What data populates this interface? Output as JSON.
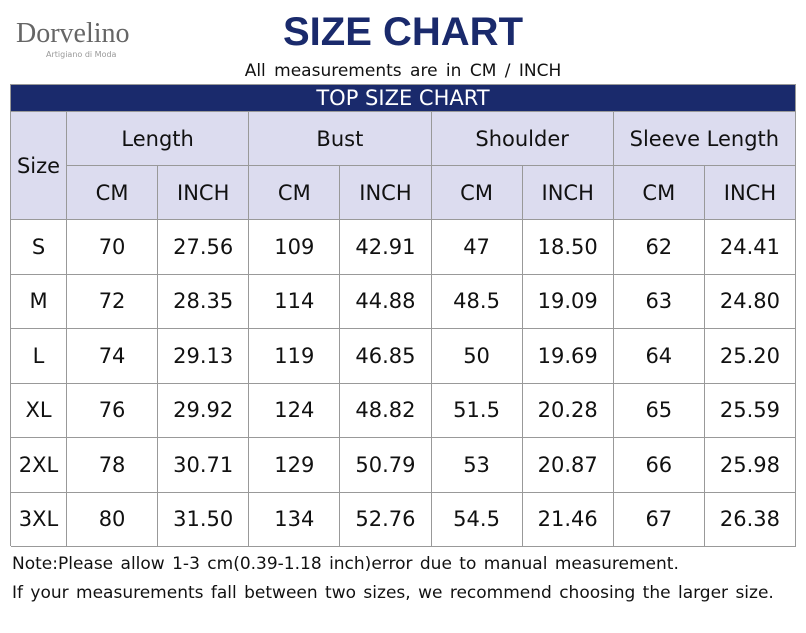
{
  "header": {
    "logo": "Dorvelino",
    "logo_tagline": "Artigiano di Moda",
    "title": "SIZE CHART",
    "subtitle": "All measurements are in CM / INCH"
  },
  "table": {
    "title": "TOP SIZE CHART",
    "size_header": "Size",
    "groups": [
      "Length",
      "Bust",
      "Shoulder",
      "Sleeve Length"
    ],
    "units": [
      "CM",
      "INCH",
      "CM",
      "INCH",
      "CM",
      "INCH",
      "CM",
      "INCH"
    ],
    "rows": [
      [
        "S",
        "70",
        "27.56",
        "109",
        "42.91",
        "47",
        "18.50",
        "62",
        "24.41"
      ],
      [
        "M",
        "72",
        "28.35",
        "114",
        "44.88",
        "48.5",
        "19.09",
        "63",
        "24.80"
      ],
      [
        "L",
        "74",
        "29.13",
        "119",
        "46.85",
        "50",
        "19.69",
        "64",
        "25.20"
      ],
      [
        "XL",
        "76",
        "29.92",
        "124",
        "48.82",
        "51.5",
        "20.28",
        "65",
        "25.59"
      ],
      [
        "2XL",
        "78",
        "30.71",
        "129",
        "50.79",
        "53",
        "20.87",
        "66",
        "25.98"
      ],
      [
        "3XL",
        "80",
        "31.50",
        "134",
        "52.76",
        "54.5",
        "21.46",
        "67",
        "26.38"
      ]
    ]
  },
  "notes": [
    "Note:Please allow 1-3 cm(0.39-1.18 inch)error due to manual measurement.",
    "If your measurements fall between two sizes, we recommend choosing the larger size."
  ]
}
